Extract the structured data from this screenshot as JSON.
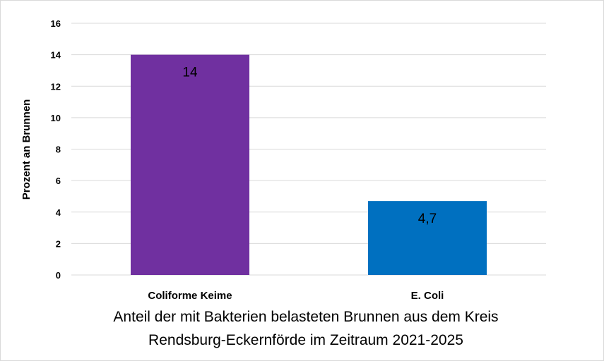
{
  "chart_data": {
    "type": "bar",
    "categories": [
      "Coliforme Keime",
      "E. Coli"
    ],
    "values": [
      14,
      4.7
    ],
    "data_labels": [
      "14",
      "4,7"
    ],
    "colors": [
      "#7030A0",
      "#0070C0"
    ],
    "xlabel_lines": [
      "Anteil der mit Bakterien belasteten Brunnen aus dem Kreis",
      "Rendsburg-Eckernförde im Zeitraum 2021-2025"
    ],
    "ylabel": "Prozent an Brunnen",
    "ylim": [
      0,
      16
    ],
    "yticks": [
      "0",
      "2",
      "4",
      "6",
      "8",
      "10",
      "12",
      "14",
      "16"
    ],
    "grid": true,
    "legend": "none"
  }
}
